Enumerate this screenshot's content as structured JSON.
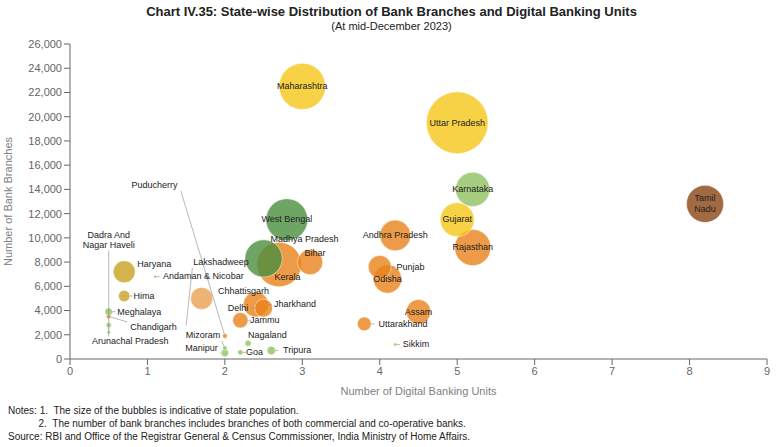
{
  "chart_data": {
    "type": "scatter",
    "title": "Chart IV.35: State-wise Distribution of Bank Branches and Digital Banking Units",
    "subtitle": "(At mid-December 2023)",
    "x_label": "Number of Digital Banking Units",
    "y_label": "Number of Bank Branches",
    "xlim": [
      0,
      9
    ],
    "ylim": [
      0,
      26000
    ],
    "xticks": [
      0,
      1,
      2,
      3,
      4,
      5,
      6,
      7,
      8,
      9
    ],
    "yticks": [
      0,
      {
        "value": 2000,
        "label": "2,000"
      },
      {
        "value": 4000,
        "label": "4,000"
      },
      {
        "value": 6000,
        "label": "6,000"
      },
      {
        "value": 8000,
        "label": "8,000"
      },
      {
        "value": 10000,
        "label": "10,000"
      },
      {
        "value": 12000,
        "label": "12,000"
      },
      {
        "value": 14000,
        "label": "14,000"
      },
      {
        "value": 16000,
        "label": "16,000"
      },
      {
        "value": 18000,
        "label": "18,000"
      },
      {
        "value": 20000,
        "label": "20,000"
      },
      {
        "value": 22000,
        "label": "22,000"
      },
      {
        "value": 24000,
        "label": "24,000"
      },
      {
        "value": 26000,
        "label": "26,000"
      }
    ],
    "grid": false,
    "notes": [
      "Notes: 1.  The size of the bubbles is indicative of state population.",
      "           2.  The number of bank branches includes branches of both commercial and co-operative banks.",
      "Source: RBI and Office of the Registrar General & Census Commissioner, India Ministry of Home Affairs."
    ],
    "labels": [
      "Uttar Pradesh",
      "Maharashtra",
      "Bihar",
      "West Bengal",
      "Madhya Pradesh",
      "Tamil\nNadu",
      "Rajasthan",
      "Karnataka",
      "Gujarat",
      "Andhra Pradesh",
      "Odisha",
      "Kerala",
      "Jharkhand",
      "Assam",
      "Punjab",
      "Chhattisgarh",
      "Haryana",
      "Delhi",
      "Jammu",
      "Uttarakhand",
      "Hima",
      "Tripura",
      "Meghalaya",
      "Manipur",
      "Nagaland",
      "Goa",
      "Arunachal Pradesh",
      "Puducherry",
      "Chandigarh",
      "Mizoram",
      "Sikkim",
      "Dadra And\nNagar Haveli",
      "Andaman & Nicobar",
      "Lakshadweep"
    ],
    "x": [
      5.0,
      3.0,
      2.7,
      2.8,
      2.5,
      8.2,
      5.2,
      5.2,
      5.0,
      4.2,
      4.1,
      3.1,
      2.4,
      4.5,
      4.0,
      1.7,
      0.7,
      2.5,
      2.2,
      3.8,
      0.7,
      2.6,
      0.5,
      2.0,
      2.3,
      2.2,
      0.5,
      2.0,
      0.5,
      2.0,
      4.2,
      0.5,
      1.1,
      1.5
    ],
    "values": [
      19500,
      22500,
      7800,
      11500,
      8300,
      12800,
      9200,
      14000,
      11500,
      10200,
      6600,
      8000,
      4500,
      3900,
      7600,
      5000,
      7200,
      4200,
      3200,
      2900,
      5200,
      700,
      3900,
      500,
      1300,
      550,
      2800,
      1900,
      3500,
      900,
      1200,
      2200,
      6800,
      2800
    ],
    "sizes": [
      199.8,
      112.4,
      103.8,
      91.3,
      72.6,
      72.1,
      68.5,
      61.1,
      60.4,
      49.4,
      42.0,
      33.4,
      33.0,
      31.2,
      27.7,
      25.5,
      25.4,
      16.8,
      12.5,
      10.1,
      6.9,
      3.67,
      3.0,
      2.9,
      1.98,
      1.46,
      1.4,
      1.25,
      1.1,
      1.1,
      0.61,
      0.59,
      0.38,
      0.064
    ],
    "colors": [
      "#f5c518",
      "#f5c518",
      "#e8821a",
      "#4a8f3f",
      "#4a8f3f",
      "#8B4513",
      "#e8821a",
      "#90c060",
      "#f5c518",
      "#e8821a",
      "#e8821a",
      "#e8821a",
      "#e8821a",
      "#e8821a",
      "#e8821a",
      "#e8a050",
      "#c8a020",
      "#e8821a",
      "#e8821a",
      "#e8821a",
      "#c8a020",
      "#90c060",
      "#90c060",
      "#90c060",
      "#90c060",
      "#90c060",
      "#90c060",
      "#e8821a",
      "#e8821a",
      "#90c060",
      "#90c060",
      "#90c060",
      "#e8821a",
      "#e8821a"
    ]
  }
}
